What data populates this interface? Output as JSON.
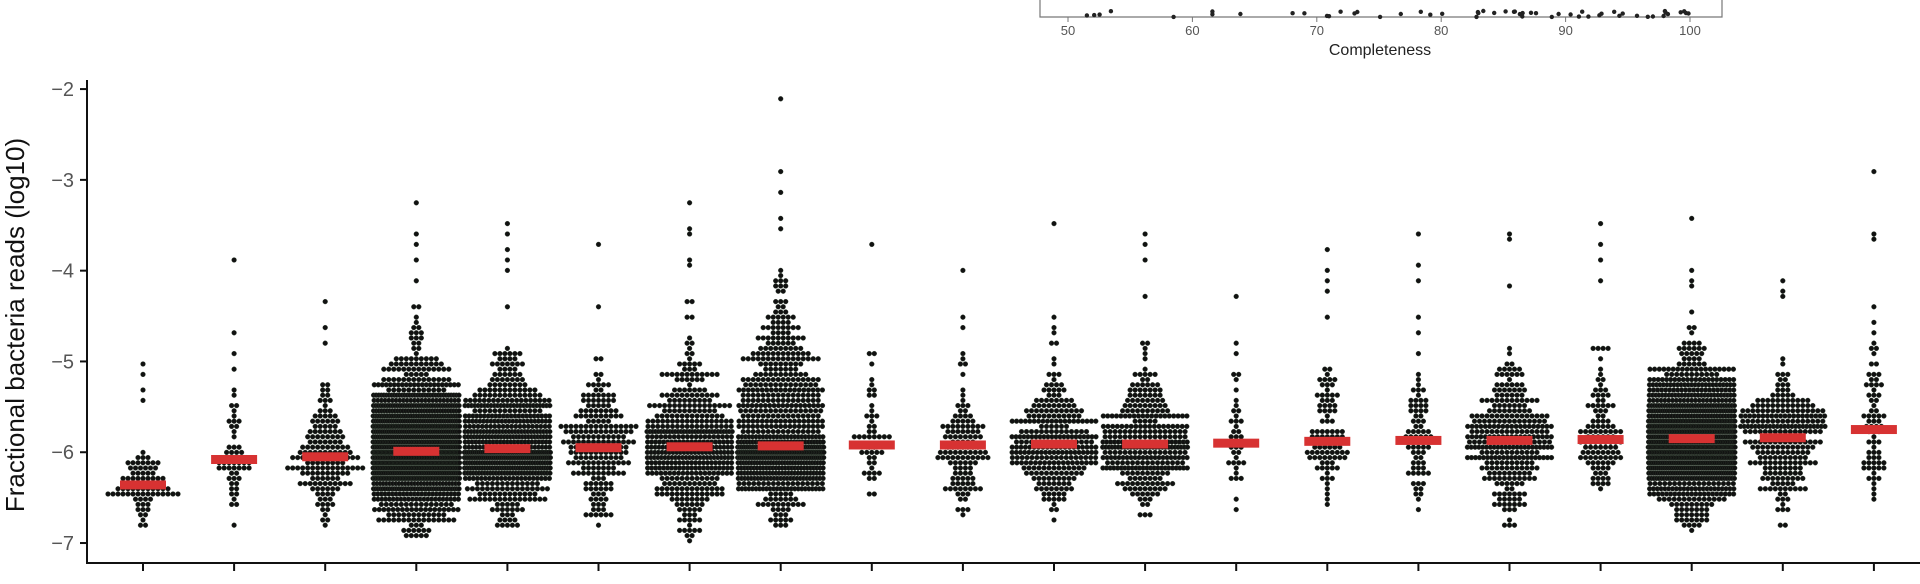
{
  "colors": {
    "point": "#111111",
    "median": "#d73232",
    "axis": "#111111",
    "tick_text": "#555555",
    "inset_frame": "#777777"
  },
  "inset": {
    "xlabel": "Completeness",
    "x_ticks": [
      "50",
      "60",
      "70",
      "80",
      "90",
      "100"
    ],
    "xlim": [
      48,
      103
    ]
  },
  "chart_data": {
    "type": "scatter",
    "ylabel": "Fractional bacteria reads (log10)",
    "ylim": [
      -7.22,
      -1.9
    ],
    "y_ticks": [
      -2,
      -3,
      -4,
      -5,
      -6,
      -7
    ],
    "y_tick_labels": [
      "−2",
      "−3",
      "−4",
      "−5",
      "−6",
      "−7"
    ],
    "grid": false,
    "legend": "none",
    "groups": [
      {
        "median": -6.36,
        "n": 80,
        "min": -6.85,
        "max": -5.05,
        "top_points": [
          -5.05,
          -5.12,
          -5.3,
          -5.45
        ]
      },
      {
        "median": -6.08,
        "n": 55,
        "min": -6.92,
        "max": -3.89,
        "top_points": [
          -3.89,
          -4.7,
          -4.9,
          -5.1
        ]
      },
      {
        "median": -6.05,
        "n": 160,
        "min": -6.85,
        "max": -4.35,
        "top_points": [
          -4.35,
          -4.65,
          -4.8
        ]
      },
      {
        "median": -5.99,
        "n": 1100,
        "min": -6.95,
        "max": -3.28,
        "top_points": [
          -3.28,
          -3.58,
          -3.72,
          -3.9
        ]
      },
      {
        "median": -5.96,
        "n": 600,
        "min": -6.85,
        "max": -3.5,
        "top_points": [
          -3.5,
          -3.62,
          -3.75,
          -3.9,
          -4.02
        ]
      },
      {
        "median": -5.95,
        "n": 210,
        "min": -6.85,
        "max": -3.73,
        "top_points": [
          -3.73,
          -4.4
        ]
      },
      {
        "median": -5.94,
        "n": 440,
        "min": -6.95,
        "max": -3.27,
        "top_points": [
          -3.27,
          -3.55,
          -3.6,
          -3.87,
          -3.95
        ]
      },
      {
        "median": -5.93,
        "n": 700,
        "min": -6.8,
        "max": -2.08,
        "top_points": [
          -2.08,
          -2.93,
          -3.15,
          -3.4,
          -3.55
        ]
      },
      {
        "median": -5.92,
        "n": 45,
        "min": -6.55,
        "max": -3.71,
        "top_points": [
          -3.71,
          -4.9,
          -5.0
        ]
      },
      {
        "median": -5.92,
        "n": 120,
        "min": -6.7,
        "max": -4.02,
        "top_points": [
          -4.02,
          -4.5,
          -4.6
        ]
      },
      {
        "median": -5.91,
        "n": 280,
        "min": -6.75,
        "max": -3.5,
        "top_points": [
          -3.5,
          -4.5,
          -4.65
        ]
      },
      {
        "median": -5.91,
        "n": 320,
        "min": -6.75,
        "max": -3.62,
        "top_points": [
          -3.62,
          -3.7,
          -3.9,
          -4.3
        ]
      },
      {
        "median": -5.9,
        "n": 40,
        "min": -6.75,
        "max": -4.26,
        "top_points": [
          -4.26,
          -4.8,
          -4.9
        ]
      },
      {
        "median": -5.88,
        "n": 90,
        "min": -6.6,
        "max": -3.78,
        "top_points": [
          -3.78,
          -4.0,
          -4.1,
          -4.25
        ]
      },
      {
        "median": -5.87,
        "n": 75,
        "min": -6.8,
        "max": -3.6,
        "top_points": [
          -3.6,
          -3.95,
          -4.1,
          -4.5
        ]
      },
      {
        "median": -5.87,
        "n": 300,
        "min": -6.8,
        "max": -3.6,
        "top_points": [
          -3.6,
          -3.68,
          -4.15
        ]
      },
      {
        "median": -5.86,
        "n": 110,
        "min": -6.5,
        "max": -3.51,
        "top_points": [
          -3.51,
          -3.72,
          -3.9,
          -4.1
        ]
      },
      {
        "median": -5.85,
        "n": 1000,
        "min": -6.85,
        "max": -3.4,
        "top_points": [
          -3.4,
          -4.0,
          -4.12
        ]
      },
      {
        "median": -5.84,
        "n": 260,
        "min": -6.85,
        "max": -4.1,
        "top_points": [
          -4.1,
          -4.2,
          -4.3
        ]
      },
      {
        "median": -5.75,
        "n": 70,
        "min": -6.6,
        "max": -2.91,
        "top_points": [
          -2.91,
          -3.58,
          -3.64,
          -4.38
        ]
      }
    ]
  }
}
